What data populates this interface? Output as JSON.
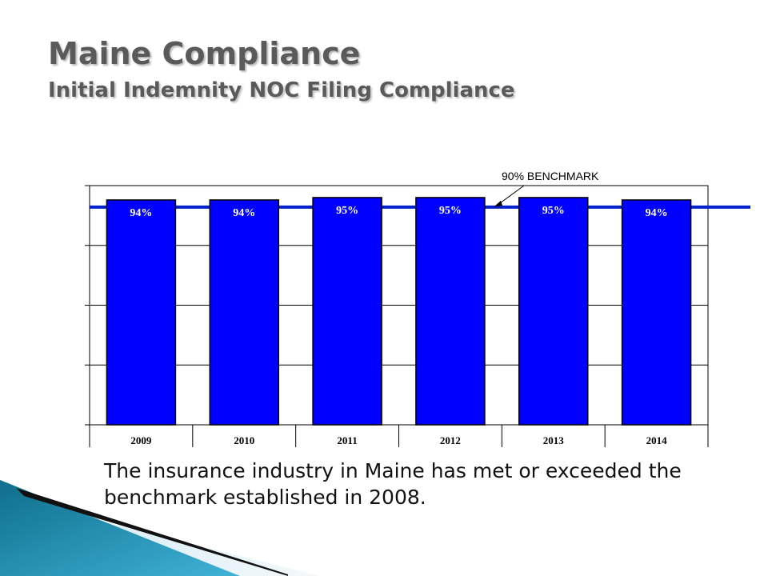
{
  "header": {
    "title": "Maine Compliance",
    "subtitle": "Initial Indemnity NOC Filing Compliance"
  },
  "chart_data": {
    "type": "bar",
    "categories": [
      "2009",
      "2010",
      "2011",
      "2012",
      "2013",
      "2014"
    ],
    "values": [
      94,
      94,
      95,
      95,
      95,
      94
    ],
    "data_labels": [
      "94%",
      "94%",
      "95%",
      "95%",
      "95%",
      "94%"
    ],
    "benchmark": {
      "value": 90,
      "label": "90% BENCHMARK"
    },
    "ylim": [
      0,
      100
    ],
    "grid": true,
    "legend": "none",
    "colors": {
      "bar": "#0000ff",
      "benchmark": "#0022cc",
      "label": "#ffffff"
    }
  },
  "caption": "The insurance industry in Maine has met or exceeded the benchmark established in 2008."
}
